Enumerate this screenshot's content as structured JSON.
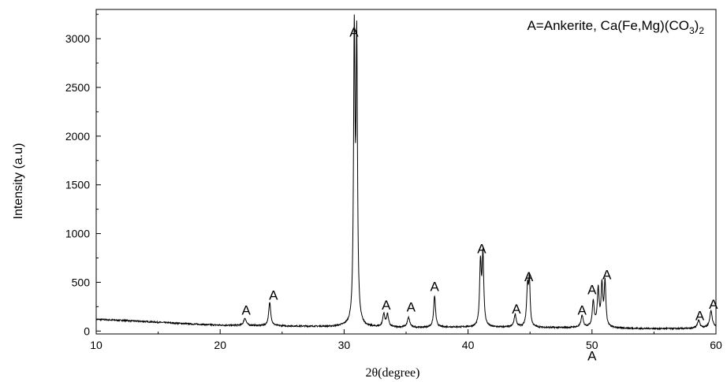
{
  "chart_data": {
    "type": "line",
    "title": "",
    "xlabel": "2θ(degree)",
    "ylabel": "Intensity (a.u)",
    "xlim": [
      10,
      60
    ],
    "ylim": [
      -30,
      3300
    ],
    "x_ticks": [
      10,
      20,
      30,
      40,
      50,
      60
    ],
    "y_ticks": [
      0,
      500,
      1000,
      1500,
      2000,
      2500,
      3000
    ],
    "legend_text": {
      "main": "A=Ankerite, Ca(Fe,Mg)(CO",
      "sub1": "3",
      "mid": ")",
      "sub2": "2"
    },
    "legend_position": "top-right",
    "grid": false,
    "line_color": "#000000",
    "baseline_points": [
      [
        10,
        120
      ],
      [
        12,
        110
      ],
      [
        15,
        90
      ],
      [
        18,
        70
      ],
      [
        20,
        60
      ],
      [
        23,
        55
      ],
      [
        26,
        50
      ],
      [
        29,
        45
      ],
      [
        30,
        50
      ],
      [
        32,
        40
      ],
      [
        34,
        38
      ],
      [
        36,
        35
      ],
      [
        38,
        40
      ],
      [
        40,
        40
      ],
      [
        42,
        38
      ],
      [
        44,
        40
      ],
      [
        46,
        35
      ],
      [
        48,
        35
      ],
      [
        50,
        40
      ],
      [
        52,
        30
      ],
      [
        54,
        25
      ],
      [
        56,
        25
      ],
      [
        58,
        25
      ],
      [
        60,
        40
      ]
    ],
    "peaks": [
      {
        "x": 22.0,
        "y": 75,
        "w": 0.12
      },
      {
        "x": 24.0,
        "y": 240,
        "w": 0.1
      },
      {
        "x": 30.82,
        "y": 2900,
        "w": 0.07
      },
      {
        "x": 31.02,
        "y": 2820,
        "w": 0.07
      },
      {
        "x": 33.2,
        "y": 130,
        "w": 0.1
      },
      {
        "x": 33.5,
        "y": 125,
        "w": 0.1
      },
      {
        "x": 35.2,
        "y": 100,
        "w": 0.12
      },
      {
        "x": 37.3,
        "y": 320,
        "w": 0.09
      },
      {
        "x": 41.0,
        "y": 640,
        "w": 0.08
      },
      {
        "x": 41.2,
        "y": 720,
        "w": 0.08
      },
      {
        "x": 43.8,
        "y": 130,
        "w": 0.1
      },
      {
        "x": 44.8,
        "y": 400,
        "w": 0.09
      },
      {
        "x": 44.95,
        "y": 440,
        "w": 0.07
      },
      {
        "x": 49.2,
        "y": 120,
        "w": 0.1
      },
      {
        "x": 50.1,
        "y": 260,
        "w": 0.09
      },
      {
        "x": 50.5,
        "y": 380,
        "w": 0.09
      },
      {
        "x": 50.8,
        "y": 420,
        "w": 0.08
      },
      {
        "x": 51.05,
        "y": 460,
        "w": 0.08
      },
      {
        "x": 58.6,
        "y": 80,
        "w": 0.12
      },
      {
        "x": 59.6,
        "y": 170,
        "w": 0.12
      }
    ],
    "annotations": [
      {
        "text": "A",
        "x": 22.1,
        "y": 170
      },
      {
        "text": "A",
        "x": 24.3,
        "y": 320
      },
      {
        "text": "A",
        "x": 30.8,
        "y": 3020
      },
      {
        "text": "A",
        "x": 33.4,
        "y": 220
      },
      {
        "text": "A",
        "x": 35.4,
        "y": 200
      },
      {
        "text": "A",
        "x": 37.3,
        "y": 410
      },
      {
        "text": "A",
        "x": 41.1,
        "y": 800
      },
      {
        "text": "A",
        "x": 43.9,
        "y": 180
      },
      {
        "text": "A",
        "x": 44.9,
        "y": 510
      },
      {
        "text": "A",
        "x": 49.2,
        "y": 170
      },
      {
        "text": "A",
        "x": 50.0,
        "y": 380
      },
      {
        "text": "A",
        "x": 51.2,
        "y": 530
      },
      {
        "text": "A",
        "x": 50.0,
        "y": -300
      },
      {
        "text": "A",
        "x": 58.7,
        "y": 110
      },
      {
        "text": "A",
        "x": 59.8,
        "y": 230
      }
    ]
  }
}
